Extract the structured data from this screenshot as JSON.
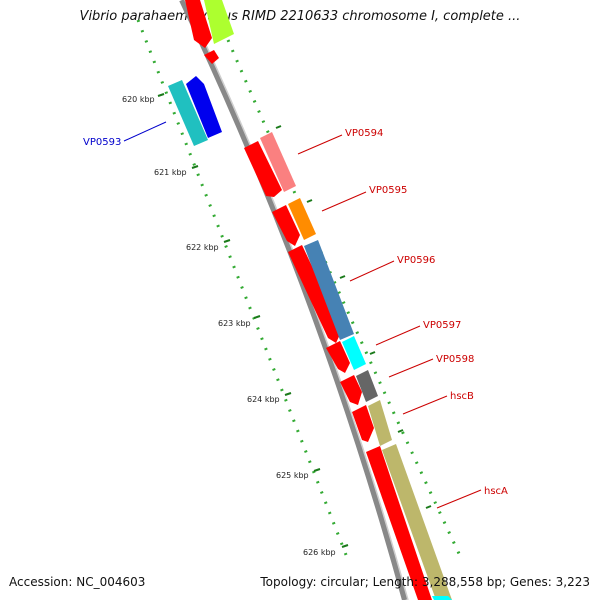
{
  "title": "Vibrio parahaemolyticus RIMD 2210633 chromosome I, complete ...",
  "accession_text": "Accession: NC_004603",
  "summary_text": "Topology: circular; Length: 3,288,558 bp; Genes: 3,223",
  "ticks": [
    {
      "label": "620 kbp",
      "position_kbp": 620
    },
    {
      "label": "621 kbp",
      "position_kbp": 621
    },
    {
      "label": "622 kbp",
      "position_kbp": 622
    },
    {
      "label": "623 kbp",
      "position_kbp": 623
    },
    {
      "label": "624 kbp",
      "position_kbp": 624
    },
    {
      "label": "625 kbp",
      "position_kbp": 625
    },
    {
      "label": "626 kbp",
      "position_kbp": 626
    }
  ],
  "gene_labels": [
    {
      "name": "VP0593",
      "color": "#0000cc"
    },
    {
      "name": "VP0594",
      "color": "#cc0000"
    },
    {
      "name": "VP0595",
      "color": "#cc0000"
    },
    {
      "name": "VP0596",
      "color": "#cc0000"
    },
    {
      "name": "VP0597",
      "color": "#cc0000"
    },
    {
      "name": "VP0598",
      "color": "#cc0000"
    },
    {
      "name": "hscB",
      "color": "#cc0000"
    },
    {
      "name": "hscA",
      "color": "#cc0000"
    }
  ],
  "colors": {
    "backbone": "#888888",
    "tick": "#1a7a1a",
    "dot": "#33aa33",
    "cds": "#ff0000",
    "gene_ring": [
      "#fa8080",
      "#ff8c00",
      "#4682b4",
      "#00ffff",
      "#666666",
      "#bdb76b"
    ]
  }
}
